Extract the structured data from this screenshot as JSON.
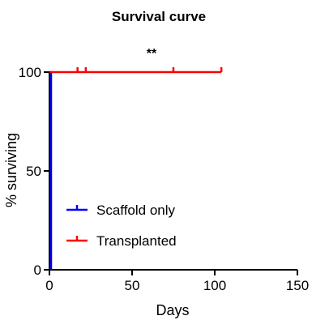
{
  "chart_data": {
    "type": "line",
    "title": "Survival  curve",
    "xlabel": "Days",
    "ylabel": "% surviving",
    "xlim": [
      0,
      150
    ],
    "ylim": [
      0,
      100
    ],
    "x_ticks": [
      0,
      50,
      100,
      150
    ],
    "y_ticks": [
      0,
      50,
      100
    ],
    "x_tick_labels": [
      "0",
      "50",
      "100",
      "150"
    ],
    "y_tick_labels": [
      "0",
      "50",
      "100"
    ],
    "grid": false,
    "legend_position": "center-left",
    "annotation": "**",
    "series": [
      {
        "name": "Scaffold only",
        "color": "#0000ff",
        "steps": [
          [
            0,
            100
          ],
          [
            1,
            100
          ],
          [
            1,
            0
          ],
          [
            1,
            0
          ]
        ],
        "censored": []
      },
      {
        "name": "Transplanted",
        "color": "#ff0000",
        "steps": [
          [
            0,
            100
          ],
          [
            104,
            100
          ]
        ],
        "censored": [
          17,
          22,
          75,
          104
        ]
      }
    ]
  }
}
